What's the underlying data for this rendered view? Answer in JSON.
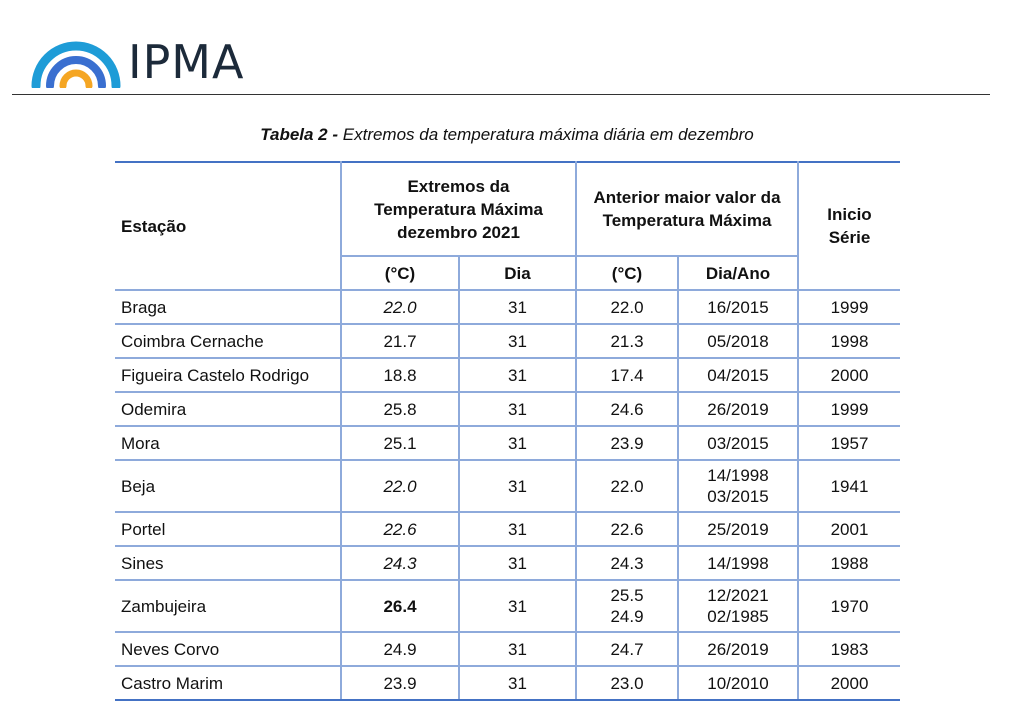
{
  "header": {
    "logo_text": "IPMA",
    "colors": {
      "arc_outer": "#1e9cd7",
      "arc_middle": "#3a6fd0",
      "arc_inner": "#f5a623",
      "text": "#1c2a3a",
      "table_border": "#8eaadb",
      "table_rule": "#4472c4"
    }
  },
  "caption": {
    "prefix": "Tabela 2 -",
    "text": " Extremos da temperatura máxima diária em dezembro"
  },
  "table": {
    "headers": {
      "station": "Estação",
      "extremes": [
        "Extremos da",
        "Temperatura Máxima",
        "dezembro 2021"
      ],
      "previous": [
        "Anterior maior valor da",
        "Temperatura Máxima"
      ],
      "series": [
        "Inicio",
        "Série"
      ],
      "temp_unit_1": "(°C)",
      "day": "Dia",
      "temp_unit_2": "(°C)",
      "day_year": "Dia/Ano"
    },
    "rows": [
      {
        "station": "Braga",
        "temp": "22.0",
        "temp_style": "italic",
        "day": "31",
        "prev_temp": [
          "22.0"
        ],
        "prev_date": [
          "16/2015"
        ],
        "series_start": "1999"
      },
      {
        "station": "Coimbra Cernache",
        "temp": "21.7",
        "temp_style": "normal",
        "day": "31",
        "prev_temp": [
          "21.3"
        ],
        "prev_date": [
          "05/2018"
        ],
        "series_start": "1998"
      },
      {
        "station": "Figueira Castelo Rodrigo",
        "temp": "18.8",
        "temp_style": "normal",
        "day": "31",
        "prev_temp": [
          "17.4"
        ],
        "prev_date": [
          "04/2015"
        ],
        "series_start": "2000"
      },
      {
        "station": "Odemira",
        "temp": "25.8",
        "temp_style": "normal",
        "day": "31",
        "prev_temp": [
          "24.6"
        ],
        "prev_date": [
          "26/2019"
        ],
        "series_start": "1999"
      },
      {
        "station": "Mora",
        "temp": "25.1",
        "temp_style": "normal",
        "day": "31",
        "prev_temp": [
          "23.9"
        ],
        "prev_date": [
          "03/2015"
        ],
        "series_start": "1957"
      },
      {
        "station": "Beja",
        "temp": "22.0",
        "temp_style": "italic",
        "day": "31",
        "prev_temp": [
          "22.0"
        ],
        "prev_date": [
          "14/1998",
          "03/2015"
        ],
        "series_start": "1941"
      },
      {
        "station": "Portel",
        "temp": "22.6",
        "temp_style": "italic",
        "day": "31",
        "prev_temp": [
          "22.6"
        ],
        "prev_date": [
          "25/2019"
        ],
        "series_start": "2001"
      },
      {
        "station": "Sines",
        "temp": "24.3",
        "temp_style": "italic",
        "day": "31",
        "prev_temp": [
          "24.3"
        ],
        "prev_date": [
          "14/1998"
        ],
        "series_start": "1988"
      },
      {
        "station": "Zambujeira",
        "temp": "26.4",
        "temp_style": "bold",
        "day": "31",
        "prev_temp": [
          "25.5",
          "24.9"
        ],
        "prev_date": [
          "12/2021",
          "02/1985"
        ],
        "series_start": "1970"
      },
      {
        "station": "Neves Corvo",
        "temp": "24.9",
        "temp_style": "normal",
        "day": "31",
        "prev_temp": [
          "24.7"
        ],
        "prev_date": [
          "26/2019"
        ],
        "series_start": "1983"
      },
      {
        "station": "Castro Marim",
        "temp": "23.9",
        "temp_style": "normal",
        "day": "31",
        "prev_temp": [
          "23.0"
        ],
        "prev_date": [
          "10/2010"
        ],
        "series_start": "2000"
      }
    ]
  }
}
